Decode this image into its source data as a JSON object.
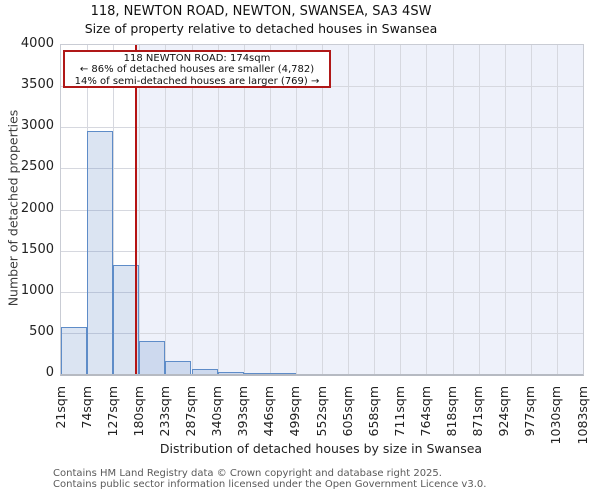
{
  "title": {
    "line1": "118, NEWTON ROAD, NEWTON, SWANSEA, SA3 4SW",
    "line2": "Size of property relative to detached houses in Swansea"
  },
  "annotation": {
    "line1": "118 NEWTON ROAD: 174sqm",
    "line2": "← 86% of detached houses are smaller (4,782)",
    "line3": "14% of semi-detached houses are larger (769) →"
  },
  "chart_data": {
    "type": "bar",
    "title": "118, NEWTON ROAD, NEWTON, SWANSEA, SA3 4SW — Size of property relative to detached houses in Swansea",
    "xlabel": "Distribution of detached houses by size in Swansea",
    "ylabel": "Number of detached properties",
    "bin_edges_sqm": [
      21,
      74,
      127,
      180,
      233,
      287,
      340,
      393,
      446,
      499,
      552,
      605,
      658,
      711,
      764,
      818,
      871,
      924,
      977,
      1030,
      1083
    ],
    "x_tick_labels": [
      "21sqm",
      "74sqm",
      "127sqm",
      "180sqm",
      "233sqm",
      "287sqm",
      "340sqm",
      "393sqm",
      "446sqm",
      "499sqm",
      "552sqm",
      "605sqm",
      "658sqm",
      "711sqm",
      "764sqm",
      "818sqm",
      "871sqm",
      "924sqm",
      "977sqm",
      "1030sqm",
      "1083sqm"
    ],
    "counts": [
      570,
      2950,
      1320,
      400,
      155,
      60,
      25,
      15,
      10,
      0,
      0,
      0,
      0,
      0,
      0,
      0,
      0,
      0,
      0,
      0
    ],
    "ylim": [
      0,
      4000
    ],
    "yticks": [
      0,
      500,
      1000,
      1500,
      2000,
      2500,
      3000,
      3500,
      4000
    ],
    "grid": true,
    "legend": "none",
    "marker_value_sqm": 174,
    "colors": {
      "bar_fill": "rgba(93,133,196,0.22)",
      "bar_edge": "#5e8cc8",
      "marker_red": "#b51414",
      "shade_right_of_marker": "#eef1fa",
      "gridline": "#d6d8df"
    }
  },
  "footer": {
    "line1": "Contains HM Land Registry data © Crown copyright and database right 2025.",
    "line2": "Contains public sector information licensed under the Open Government Licence v3.0."
  }
}
